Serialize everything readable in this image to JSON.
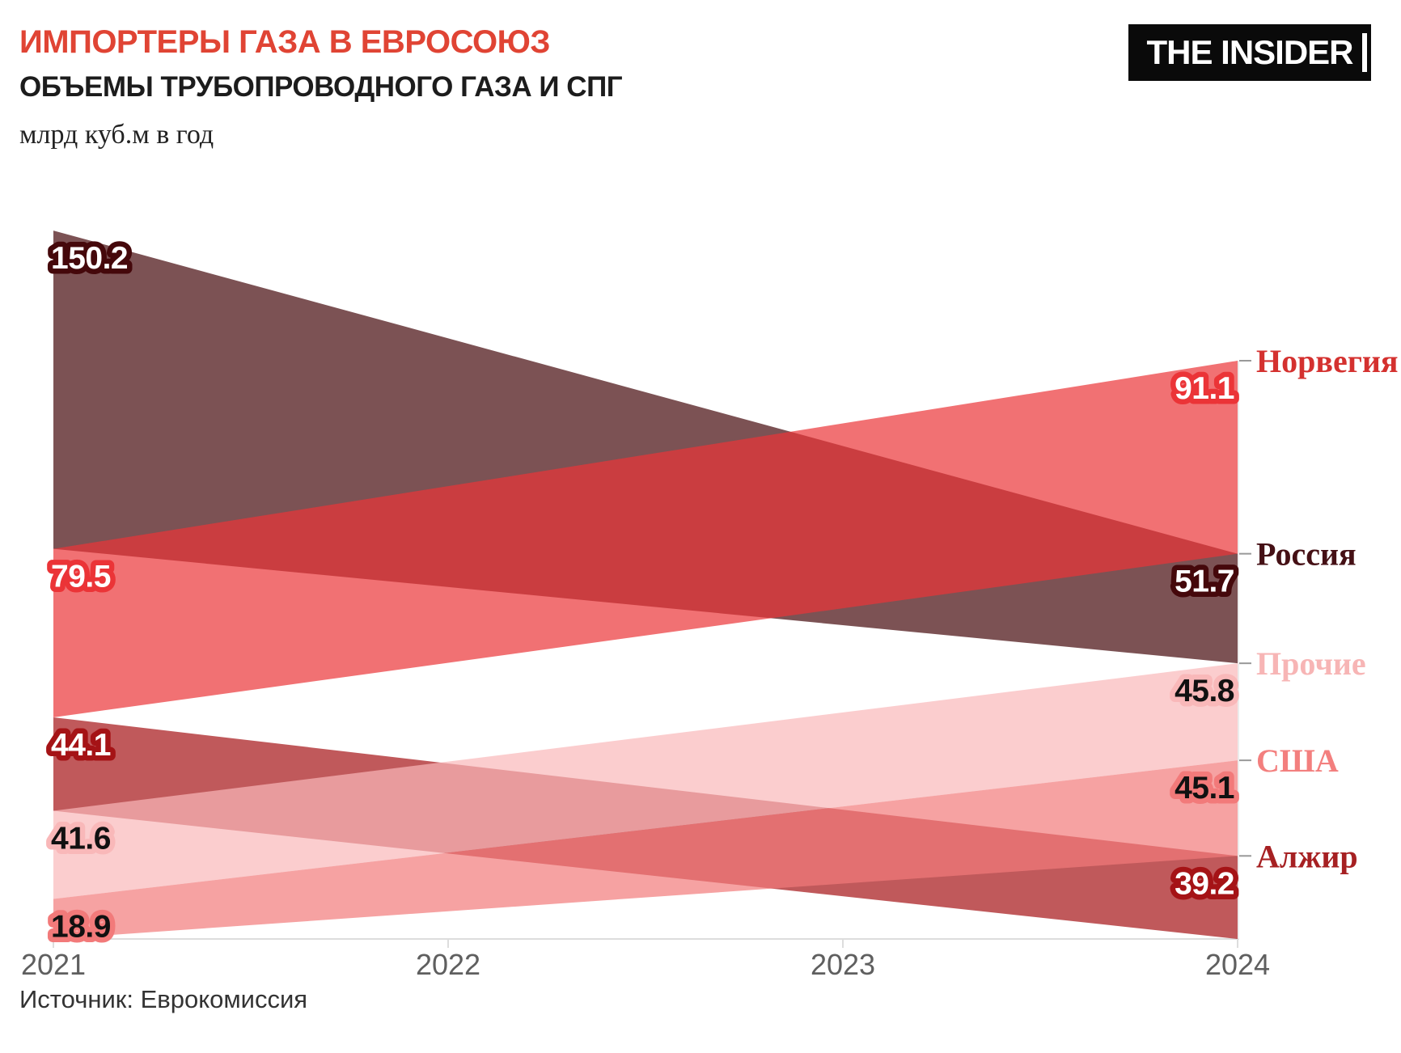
{
  "header": {
    "title": "ИМПОРТЕРЫ ГАЗА В ЕВРОСОЮЗ",
    "subtitle": "ОБЪЕМЫ ТРУБОПРОВОДНОГО ГАЗА И СПГ",
    "units_note": "млрд куб.м в год",
    "logo_text": "THE INSIDER"
  },
  "footer": {
    "source": "Источник: Еврокомиссия"
  },
  "chart_data": {
    "type": "area",
    "title": "ИМПОРТЕРЫ ГАЗА В ЕВРОСОЮЗ",
    "subtitle": "ОБЪЕМЫ ТРУБОПРОВОДНОГО ГАЗА И СПГ",
    "ylabel": "млрд куб.м в год",
    "x_years": [
      2021,
      2024
    ],
    "x_ticks": [
      "2021",
      "2022",
      "2023",
      "2024"
    ],
    "stacking": "bands stacked in descending value order at each year; bands cross between years",
    "fill_opacity": 0.7,
    "series": [
      {
        "key": "russia",
        "name": "Россия",
        "values": [
          150.2,
          51.7
        ],
        "color": "#45080B",
        "value_text_color": "#FFFFFF",
        "name_color": "#451015"
      },
      {
        "key": "norway",
        "name": "Норвегия",
        "values": [
          79.5,
          91.1
        ],
        "color": "#EB3437",
        "value_text_color": "#FFFFFF",
        "name_color": "#D4312F"
      },
      {
        "key": "algeria",
        "name": "Алжир",
        "values": [
          44.1,
          39.2
        ],
        "color": "#A51316",
        "value_text_color": "#FFFFFF",
        "name_color": "#A62022"
      },
      {
        "key": "others",
        "name": "Прочие",
        "values": [
          41.6,
          45.8
        ],
        "color": "#F9B8B9",
        "value_text_color": "#111111",
        "name_color": "#F7B5B5"
      },
      {
        "key": "usa",
        "name": "США",
        "values": [
          18.9,
          45.1
        ],
        "color": "#F27A7A",
        "value_text_color": "#111111",
        "name_color": "#F37F7E"
      }
    ],
    "axis": {
      "baseline_color": "#DDDDDD",
      "tick_color": "#DDDDDD",
      "label_color": "#5F5F5F"
    }
  }
}
